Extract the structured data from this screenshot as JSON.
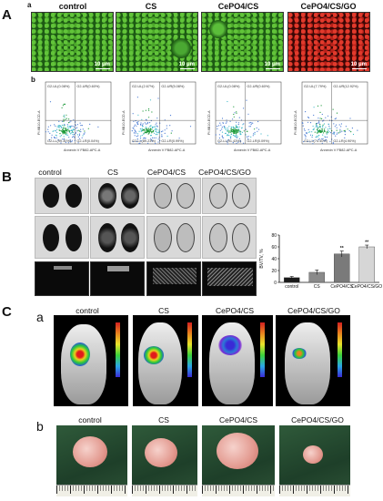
{
  "panel_a": {
    "letter": "A",
    "sub_a": "a",
    "sub_b": "b",
    "columns": [
      "control",
      "CS",
      "CePO4/CS",
      "CePO4/CS/GO"
    ],
    "scale_labels": [
      "10 μm",
      "10 μm",
      "10 μm",
      "10 μm"
    ],
    "flow": [
      {
        "q": [
          "G2-UL(0.08%)",
          "G2-UR(0.60%)",
          "G2-LL(99.30%)",
          "G2-LR(0.04%)"
        ]
      },
      {
        "q": [
          "G2-UL(2.67%)",
          "G2-UR(5.08%)",
          "G2-LL(89.23%)",
          "G2-LR(0.99%)"
        ]
      },
      {
        "q": [
          "G2-UL(0.08%)",
          "G2-UR(0.60%)",
          "G2-LL(91.43%)",
          "G2-LR(0.09%)"
        ]
      },
      {
        "q": [
          "G2-UL(7.79%)",
          "G2-UR(12.92%)",
          "G2-LL(74.40%)",
          "G2-LR(4.90%)"
        ]
      }
    ],
    "flow_xlabel": "Annexin V FB82-APC-A",
    "flow_ylabel": "PI 8B10-ECD-A"
  },
  "panel_b": {
    "letter": "B",
    "columns": [
      "control",
      "CS",
      "CePO4/CS",
      "CePO4/CS/GO"
    ],
    "chart_data": {
      "type": "bar",
      "categories": [
        "control",
        "CS",
        "CePO4/CS",
        "CePO4/CS/GO"
      ],
      "values": [
        8,
        17,
        48,
        60
      ],
      "errors": [
        2,
        4,
        5,
        3
      ],
      "significance": [
        "",
        "",
        "**",
        "**"
      ],
      "colors": [
        "#1a1a1a",
        "#8a8a8a",
        "#7a7a7a",
        "#d6d6d6"
      ],
      "ylabel": "BV/TV, %",
      "ylim": [
        0,
        80
      ],
      "yticks": [
        0,
        20,
        40,
        60,
        80
      ]
    }
  },
  "panel_c": {
    "letter": "C",
    "sub_a": "a",
    "sub_b": "b",
    "columns": [
      "control",
      "CS",
      "CePO4/CS",
      "CePO4/CS/GO"
    ]
  }
}
